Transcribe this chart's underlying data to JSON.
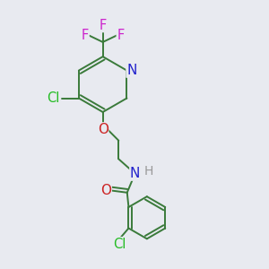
{
  "bg_color": "#e8eaf0",
  "bond_color": "#3a7a3a",
  "atom_colors": {
    "Cl": "#22bb22",
    "O": "#cc2222",
    "N": "#2222cc",
    "F": "#cc22cc",
    "H": "#999999"
  },
  "bond_width": 1.4,
  "font_size": 10.5
}
